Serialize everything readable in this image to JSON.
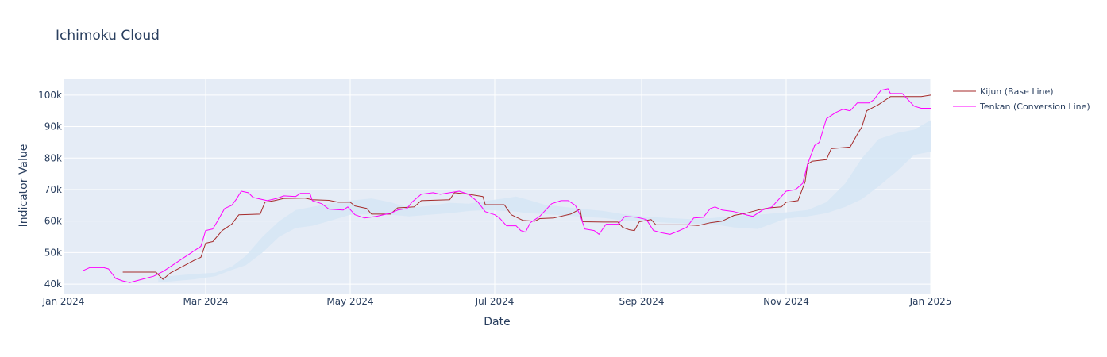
{
  "chart_data": {
    "type": "line",
    "title": "Ichimoku Cloud",
    "xlabel": "Date",
    "ylabel": "Indicator Value",
    "x_range": [
      "2024-01-01",
      "2025-01-01"
    ],
    "ylim": [
      37000,
      105000
    ],
    "grid": true,
    "legend_position": "right",
    "x_ticks": [
      {
        "date": "2024-01-01",
        "label": "Jan 2024"
      },
      {
        "date": "2024-03-01",
        "label": "Mar 2024"
      },
      {
        "date": "2024-05-01",
        "label": "May 2024"
      },
      {
        "date": "2024-07-01",
        "label": "Jul 2024"
      },
      {
        "date": "2024-09-01",
        "label": "Sep 2024"
      },
      {
        "date": "2024-11-01",
        "label": "Nov 2024"
      },
      {
        "date": "2025-01-01",
        "label": "Jan 2025"
      }
    ],
    "y_ticks": [
      {
        "value": 40000,
        "label": "40k"
      },
      {
        "value": 50000,
        "label": "50k"
      },
      {
        "value": 60000,
        "label": "60k"
      },
      {
        "value": 70000,
        "label": "70k"
      },
      {
        "value": 80000,
        "label": "80k"
      },
      {
        "value": 90000,
        "label": "90k"
      },
      {
        "value": 100000,
        "label": "100k"
      }
    ],
    "cloud": {
      "color": "#d6e6f5",
      "upper": [
        [
          "2024-02-10",
          42200
        ],
        [
          "2024-02-25",
          43200
        ],
        [
          "2024-03-05",
          43600
        ],
        [
          "2024-03-12",
          45500
        ],
        [
          "2024-03-18",
          49000
        ],
        [
          "2024-03-25",
          55000
        ],
        [
          "2024-04-01",
          60000
        ],
        [
          "2024-04-08",
          63500
        ],
        [
          "2024-04-15",
          64500
        ],
        [
          "2024-04-22",
          65500
        ],
        [
          "2024-05-01",
          66500
        ],
        [
          "2024-05-10",
          67200
        ],
        [
          "2024-05-18",
          66000
        ],
        [
          "2024-05-26",
          64200
        ],
        [
          "2024-06-03",
          64800
        ],
        [
          "2024-06-12",
          65800
        ],
        [
          "2024-06-20",
          65500
        ],
        [
          "2024-06-28",
          66500
        ],
        [
          "2024-07-05",
          67200
        ],
        [
          "2024-07-10",
          67800
        ],
        [
          "2024-07-15",
          66800
        ],
        [
          "2024-07-22",
          65200
        ],
        [
          "2024-07-30",
          64500
        ],
        [
          "2024-08-08",
          63800
        ],
        [
          "2024-08-16",
          63200
        ],
        [
          "2024-08-24",
          62200
        ],
        [
          "2024-09-01",
          61500
        ],
        [
          "2024-09-12",
          61000
        ],
        [
          "2024-09-22",
          60600
        ],
        [
          "2024-10-01",
          61000
        ],
        [
          "2024-10-10",
          61600
        ],
        [
          "2024-10-20",
          62000
        ],
        [
          "2024-11-01",
          62800
        ],
        [
          "2024-11-10",
          63500
        ],
        [
          "2024-11-18",
          66000
        ],
        [
          "2024-11-26",
          72000
        ],
        [
          "2024-12-03",
          80000
        ],
        [
          "2024-12-10",
          86000
        ],
        [
          "2024-12-18",
          88000
        ],
        [
          "2024-12-25",
          89000
        ],
        [
          "2025-01-01",
          92000
        ]
      ],
      "lower": [
        [
          "2025-01-01",
          82000
        ],
        [
          "2024-12-25",
          81000
        ],
        [
          "2024-12-18",
          76000
        ],
        [
          "2024-12-10",
          71000
        ],
        [
          "2024-12-03",
          67000
        ],
        [
          "2024-11-26",
          64500
        ],
        [
          "2024-11-18",
          62500
        ],
        [
          "2024-11-10",
          61500
        ],
        [
          "2024-11-01",
          60800
        ],
        [
          "2024-10-20",
          57500
        ],
        [
          "2024-10-10",
          58000
        ],
        [
          "2024-10-01",
          59000
        ],
        [
          "2024-09-22",
          59200
        ],
        [
          "2024-09-12",
          59500
        ],
        [
          "2024-09-01",
          60000
        ],
        [
          "2024-08-24",
          60200
        ],
        [
          "2024-08-16",
          61000
        ],
        [
          "2024-08-08",
          61300
        ],
        [
          "2024-07-30",
          61800
        ],
        [
          "2024-07-22",
          62200
        ],
        [
          "2024-07-15",
          62500
        ],
        [
          "2024-07-10",
          63000
        ],
        [
          "2024-07-05",
          63200
        ],
        [
          "2024-06-28",
          63500
        ],
        [
          "2024-06-20",
          63200
        ],
        [
          "2024-06-12",
          62500
        ],
        [
          "2024-06-03",
          62000
        ],
        [
          "2024-05-26",
          61500
        ],
        [
          "2024-05-18",
          62000
        ],
        [
          "2024-05-10",
          62200
        ],
        [
          "2024-05-01",
          62000
        ],
        [
          "2024-04-22",
          60000
        ],
        [
          "2024-04-15",
          58500
        ],
        [
          "2024-04-08",
          57800
        ],
        [
          "2024-04-01",
          55000
        ],
        [
          "2024-03-25",
          50000
        ],
        [
          "2024-03-18",
          46000
        ],
        [
          "2024-03-12",
          44500
        ],
        [
          "2024-03-05",
          42500
        ],
        [
          "2024-02-25",
          41500
        ],
        [
          "2024-02-10",
          40500
        ]
      ]
    },
    "series": [
      {
        "name": "Kijun (Base Line)",
        "color": "#a52a2a",
        "points": [
          [
            "2024-01-26",
            43800
          ],
          [
            "2024-02-09",
            43800
          ],
          [
            "2024-02-10",
            43000
          ],
          [
            "2024-02-12",
            41500
          ],
          [
            "2024-02-15",
            43500
          ],
          [
            "2024-02-20",
            45500
          ],
          [
            "2024-02-25",
            47500
          ],
          [
            "2024-02-28",
            48500
          ],
          [
            "2024-03-01",
            53000
          ],
          [
            "2024-03-04",
            53500
          ],
          [
            "2024-03-08",
            57000
          ],
          [
            "2024-03-12",
            59000
          ],
          [
            "2024-03-15",
            62000
          ],
          [
            "2024-03-24",
            62200
          ],
          [
            "2024-03-26",
            66000
          ],
          [
            "2024-03-30",
            66500
          ],
          [
            "2024-04-03",
            67200
          ],
          [
            "2024-04-12",
            67300
          ],
          [
            "2024-04-15",
            66800
          ],
          [
            "2024-04-22",
            66600
          ],
          [
            "2024-04-26",
            66000
          ],
          [
            "2024-05-01",
            66000
          ],
          [
            "2024-05-03",
            64800
          ],
          [
            "2024-05-08",
            64000
          ],
          [
            "2024-05-10",
            62200
          ],
          [
            "2024-05-18",
            62200
          ],
          [
            "2024-05-21",
            64200
          ],
          [
            "2024-05-28",
            64500
          ],
          [
            "2024-05-31",
            66500
          ],
          [
            "2024-06-12",
            66800
          ],
          [
            "2024-06-14",
            69000
          ],
          [
            "2024-06-20",
            68500
          ],
          [
            "2024-06-26",
            67800
          ],
          [
            "2024-06-27",
            65200
          ],
          [
            "2024-07-05",
            65200
          ],
          [
            "2024-07-08",
            62000
          ],
          [
            "2024-07-13",
            60200
          ],
          [
            "2024-07-18",
            60000
          ],
          [
            "2024-07-20",
            60800
          ],
          [
            "2024-07-26",
            61000
          ],
          [
            "2024-08-02",
            62200
          ],
          [
            "2024-08-06",
            63800
          ],
          [
            "2024-08-07",
            59800
          ],
          [
            "2024-08-16",
            59700
          ],
          [
            "2024-08-22",
            59700
          ],
          [
            "2024-08-24",
            58000
          ],
          [
            "2024-08-27",
            57200
          ],
          [
            "2024-08-29",
            57000
          ],
          [
            "2024-08-31",
            59800
          ],
          [
            "2024-09-05",
            60500
          ],
          [
            "2024-09-07",
            58800
          ],
          [
            "2024-09-20",
            58800
          ],
          [
            "2024-09-25",
            58600
          ],
          [
            "2024-09-30",
            59500
          ],
          [
            "2024-10-05",
            60000
          ],
          [
            "2024-10-10",
            61800
          ],
          [
            "2024-10-15",
            62500
          ],
          [
            "2024-10-20",
            63500
          ],
          [
            "2024-10-25",
            64200
          ],
          [
            "2024-10-30",
            64500
          ],
          [
            "2024-11-01",
            66000
          ],
          [
            "2024-11-06",
            66500
          ],
          [
            "2024-11-09",
            72500
          ],
          [
            "2024-11-10",
            78000
          ],
          [
            "2024-11-12",
            79000
          ],
          [
            "2024-11-18",
            79500
          ],
          [
            "2024-11-20",
            83000
          ],
          [
            "2024-11-28",
            83500
          ],
          [
            "2024-12-01",
            87500
          ],
          [
            "2024-12-03",
            90000
          ],
          [
            "2024-12-05",
            95000
          ],
          [
            "2024-12-10",
            97000
          ],
          [
            "2024-12-15",
            99500
          ],
          [
            "2024-12-28",
            99500
          ],
          [
            "2025-01-01",
            100000
          ]
        ]
      },
      {
        "name": "Tenkan (Conversion Line)",
        "color": "#ff00ff",
        "points": [
          [
            "2024-01-09",
            44200
          ],
          [
            "2024-01-12",
            45200
          ],
          [
            "2024-01-18",
            45200
          ],
          [
            "2024-01-20",
            44800
          ],
          [
            "2024-01-23",
            41800
          ],
          [
            "2024-01-26",
            41000
          ],
          [
            "2024-01-29",
            40500
          ],
          [
            "2024-02-03",
            41500
          ],
          [
            "2024-02-08",
            42500
          ],
          [
            "2024-02-12",
            44000
          ],
          [
            "2024-02-15",
            45500
          ],
          [
            "2024-02-20",
            48000
          ],
          [
            "2024-02-24",
            50000
          ],
          [
            "2024-02-28",
            52000
          ],
          [
            "2024-03-01",
            57000
          ],
          [
            "2024-03-04",
            57500
          ],
          [
            "2024-03-06",
            60000
          ],
          [
            "2024-03-09",
            64000
          ],
          [
            "2024-03-12",
            65000
          ],
          [
            "2024-03-14",
            67000
          ],
          [
            "2024-03-16",
            69500
          ],
          [
            "2024-03-19",
            69000
          ],
          [
            "2024-03-21",
            67500
          ],
          [
            "2024-03-24",
            67000
          ],
          [
            "2024-03-27",
            66500
          ],
          [
            "2024-03-31",
            67200
          ],
          [
            "2024-04-03",
            68000
          ],
          [
            "2024-04-08",
            67800
          ],
          [
            "2024-04-10",
            68800
          ],
          [
            "2024-04-14",
            68800
          ],
          [
            "2024-04-15",
            66500
          ],
          [
            "2024-04-19",
            65500
          ],
          [
            "2024-04-22",
            63800
          ],
          [
            "2024-04-28",
            63500
          ],
          [
            "2024-04-30",
            64500
          ],
          [
            "2024-05-03",
            62000
          ],
          [
            "2024-05-07",
            61000
          ],
          [
            "2024-05-12",
            61500
          ],
          [
            "2024-05-18",
            62500
          ],
          [
            "2024-05-21",
            63500
          ],
          [
            "2024-05-25",
            64000
          ],
          [
            "2024-05-27",
            66000
          ],
          [
            "2024-05-31",
            68500
          ],
          [
            "2024-06-05",
            69000
          ],
          [
            "2024-06-08",
            68500
          ],
          [
            "2024-06-12",
            69000
          ],
          [
            "2024-06-16",
            69500
          ],
          [
            "2024-06-20",
            68500
          ],
          [
            "2024-06-24",
            66000
          ],
          [
            "2024-06-27",
            63000
          ],
          [
            "2024-07-01",
            62000
          ],
          [
            "2024-07-03",
            61000
          ],
          [
            "2024-07-06",
            58500
          ],
          [
            "2024-07-10",
            58500
          ],
          [
            "2024-07-12",
            57000
          ],
          [
            "2024-07-14",
            56500
          ],
          [
            "2024-07-16",
            59500
          ],
          [
            "2024-07-20",
            61500
          ],
          [
            "2024-07-25",
            65500
          ],
          [
            "2024-07-29",
            66500
          ],
          [
            "2024-08-01",
            66500
          ],
          [
            "2024-08-04",
            65000
          ],
          [
            "2024-08-06",
            62000
          ],
          [
            "2024-08-08",
            57500
          ],
          [
            "2024-08-12",
            57000
          ],
          [
            "2024-08-14",
            55800
          ],
          [
            "2024-08-17",
            59000
          ],
          [
            "2024-08-22",
            59000
          ],
          [
            "2024-08-25",
            61500
          ],
          [
            "2024-08-30",
            61200
          ],
          [
            "2024-09-03",
            60500
          ],
          [
            "2024-09-06",
            57000
          ],
          [
            "2024-09-10",
            56200
          ],
          [
            "2024-09-13",
            55800
          ],
          [
            "2024-09-17",
            57000
          ],
          [
            "2024-09-20",
            58000
          ],
          [
            "2024-09-23",
            61000
          ],
          [
            "2024-09-27",
            61200
          ],
          [
            "2024-09-30",
            64000
          ],
          [
            "2024-10-02",
            64500
          ],
          [
            "2024-10-05",
            63500
          ],
          [
            "2024-10-10",
            63000
          ],
          [
            "2024-10-15",
            62000
          ],
          [
            "2024-10-18",
            61500
          ],
          [
            "2024-10-22",
            63500
          ],
          [
            "2024-10-26",
            64500
          ],
          [
            "2024-10-29",
            67000
          ],
          [
            "2024-11-01",
            69500
          ],
          [
            "2024-11-05",
            70000
          ],
          [
            "2024-11-08",
            72000
          ],
          [
            "2024-11-10",
            78000
          ],
          [
            "2024-11-13",
            84000
          ],
          [
            "2024-11-15",
            85000
          ],
          [
            "2024-11-18",
            92500
          ],
          [
            "2024-11-22",
            94500
          ],
          [
            "2024-11-25",
            95500
          ],
          [
            "2024-11-28",
            95000
          ],
          [
            "2024-12-01",
            97500
          ],
          [
            "2024-12-06",
            97500
          ],
          [
            "2024-12-08",
            98500
          ],
          [
            "2024-12-11",
            101500
          ],
          [
            "2024-12-14",
            102000
          ],
          [
            "2024-12-15",
            100500
          ],
          [
            "2024-12-20",
            100500
          ],
          [
            "2024-12-25",
            96500
          ],
          [
            "2024-12-28",
            95800
          ],
          [
            "2025-01-01",
            95800
          ]
        ]
      }
    ]
  }
}
